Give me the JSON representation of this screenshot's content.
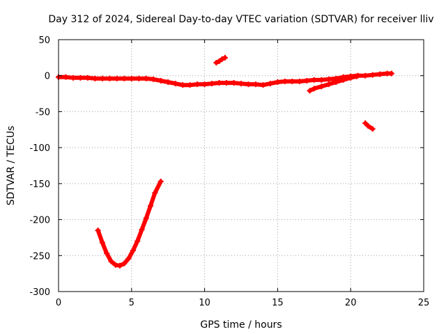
{
  "chart_data": {
    "type": "scatter",
    "title": "Day 312 of 2024, Sidereal Day-to-day VTEC variation (SDTVAR) for receiver lliv",
    "xlabel": "GPS time / hours",
    "ylabel": "SDTVAR / TECUs",
    "xlim": [
      0,
      25
    ],
    "ylim": [
      -300,
      50
    ],
    "xticks": [
      0,
      5,
      10,
      15,
      20,
      25
    ],
    "yticks": [
      50,
      0,
      -50,
      -100,
      -150,
      -200,
      -250,
      -300
    ],
    "grid": true,
    "legend": "none",
    "marker": "plus",
    "color": "#ff0000",
    "series": [
      {
        "x": [
          0,
          0.5,
          1,
          1.5,
          2,
          2.5,
          3,
          3.5,
          4,
          4.5,
          5,
          5.5,
          6,
          6.5,
          7,
          7.5,
          8,
          8.5,
          9,
          9.5,
          10,
          10.5,
          11,
          11.5,
          12,
          12.5,
          13,
          13.5,
          14,
          14.5,
          15,
          15.5,
          16,
          16.5,
          17,
          17.5,
          18,
          18.5,
          19,
          19.5,
          20,
          20.5,
          21,
          21.5,
          22,
          22.5,
          22.8
        ],
        "y": [
          -2,
          -2,
          -3,
          -3,
          -3,
          -4,
          -4,
          -4,
          -4,
          -4,
          -4,
          -4,
          -4,
          -5,
          -7,
          -9,
          -11,
          -13,
          -13,
          -12,
          -12,
          -11,
          -10,
          -10,
          -10,
          -11,
          -12,
          -12,
          -13,
          -11,
          -9,
          -8,
          -8,
          -8,
          -7,
          -6,
          -6,
          -5,
          -4,
          -2,
          -1,
          0,
          0,
          1,
          2,
          3,
          3
        ]
      },
      {
        "x": [
          17.2,
          17.5,
          18,
          18.5,
          19,
          19.5,
          20,
          20.4
        ],
        "y": [
          -21,
          -18,
          -15,
          -12,
          -9,
          -6,
          -3,
          -1
        ]
      },
      {
        "x": [
          10.8,
          11.0,
          11.2,
          11.4
        ],
        "y": [
          18,
          20,
          23,
          25
        ]
      },
      {
        "x": [
          21.0,
          21.2,
          21.5
        ],
        "y": [
          -66,
          -70,
          -74
        ]
      },
      {
        "x": [
          2.7,
          3.0,
          3.3,
          3.6,
          3.9,
          4.2,
          4.5,
          4.8,
          5.1,
          5.4,
          5.7,
          6.0,
          6.3,
          6.6,
          7.0
        ],
        "y": [
          -215,
          -232,
          -247,
          -258,
          -263,
          -264,
          -261,
          -254,
          -243,
          -230,
          -214,
          -198,
          -181,
          -163,
          -147
        ]
      }
    ]
  }
}
